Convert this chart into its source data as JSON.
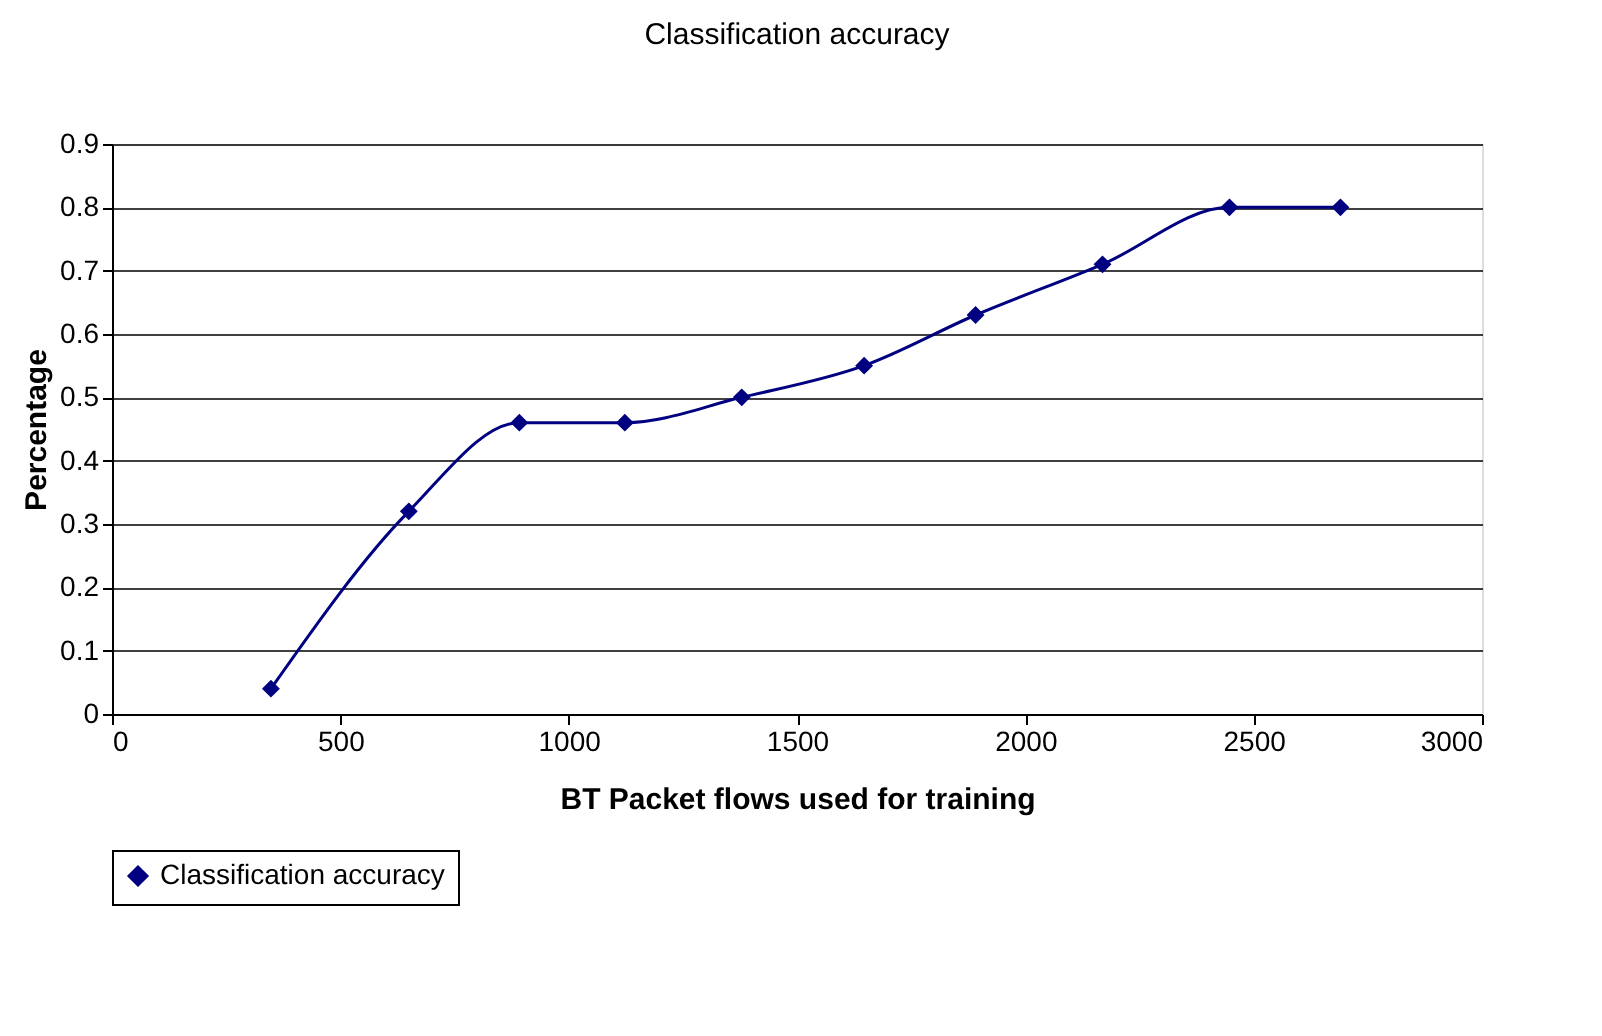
{
  "chart_data": {
    "type": "line",
    "title": "Classification accuracy",
    "xlabel": "BT Packet flows used for training",
    "ylabel": "Percentage",
    "series": [
      {
        "name": "Classification accuracy",
        "color": "#000080",
        "x": [
          348,
          650,
          892,
          1123,
          1379,
          1647,
          1891,
          2169,
          2447,
          2690
        ],
        "values": [
          0.04,
          0.32,
          0.46,
          0.46,
          0.5,
          0.55,
          0.63,
          0.71,
          0.8,
          0.8
        ]
      }
    ],
    "xlim": [
      0,
      3000
    ],
    "xticks": [
      0,
      500,
      1000,
      1500,
      2000,
      2500,
      3000
    ],
    "ylim": [
      0,
      0.9
    ],
    "yticks": [
      0,
      0.1,
      0.2,
      0.3,
      0.4,
      0.5,
      0.6,
      0.7,
      0.8,
      0.9
    ],
    "grid": "y",
    "legend": "bottom",
    "marker": "diamond",
    "line_style": "solid"
  }
}
